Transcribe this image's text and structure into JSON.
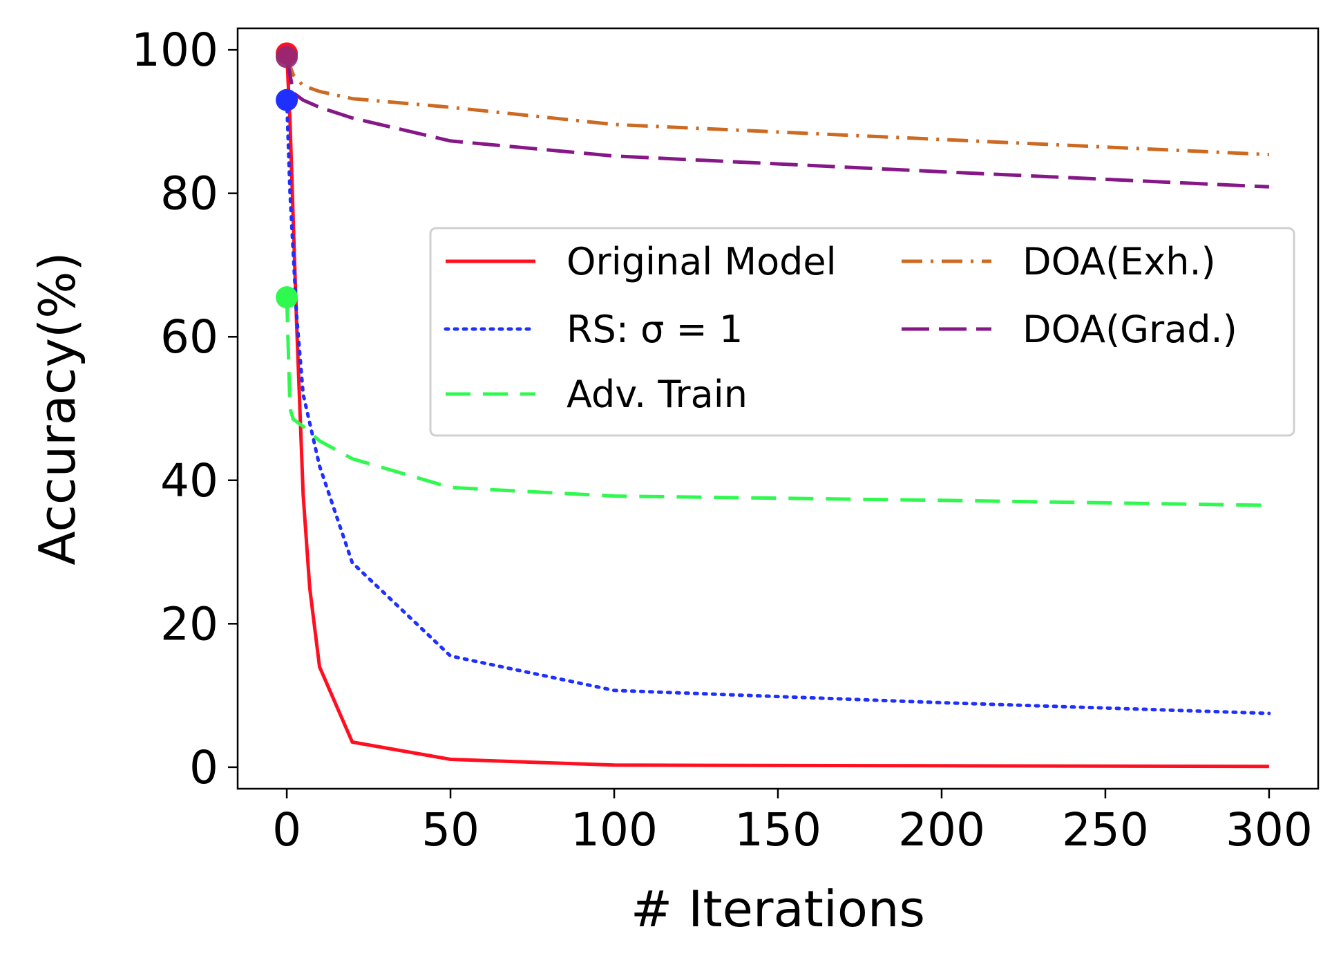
{
  "chart_data": {
    "type": "line",
    "title": "",
    "xlabel": "# Iterations",
    "ylabel": "Accuracy(%)",
    "xlim": [
      -15,
      315
    ],
    "ylim": [
      -3,
      103
    ],
    "xticks": [
      0,
      50,
      100,
      150,
      200,
      250,
      300
    ],
    "yticks": [
      0,
      20,
      40,
      60,
      80,
      100
    ],
    "grid": false,
    "legend_position": "center-right",
    "legend_columns": 2,
    "series": [
      {
        "name": "Original Model",
        "color": "#ff0f1f",
        "dash": "solid",
        "x": [
          0,
          1,
          3,
          5,
          7,
          10,
          20,
          50,
          100,
          200,
          300
        ],
        "y": [
          99.5,
          90,
          62,
          38,
          25,
          14,
          3.5,
          1.1,
          0.3,
          0.2,
          0.1
        ],
        "marker": {
          "x": 0,
          "y": 99.5
        }
      },
      {
        "name": "RS: σ = 1",
        "color": "#1f2fff",
        "dash": "dotted",
        "x": [
          0,
          1,
          3,
          5,
          10,
          20,
          50,
          100,
          200,
          300
        ],
        "y": [
          93,
          80,
          63,
          52,
          42,
          28.5,
          15.5,
          10.7,
          9.0,
          7.5
        ],
        "marker": {
          "x": 0,
          "y": 93
        }
      },
      {
        "name": "Adv. Train",
        "color": "#2ff94f",
        "dash": "dashed",
        "x": [
          0,
          1,
          2,
          5,
          10,
          20,
          50,
          100,
          200,
          300
        ],
        "y": [
          65.5,
          50,
          48.5,
          47.5,
          45.5,
          43,
          39,
          37.8,
          37.2,
          36.5
        ],
        "marker": {
          "x": 0,
          "y": 65.5
        }
      },
      {
        "name": "DOA(Exh.)",
        "color": "#cc6a22",
        "dash": "dashdot",
        "x": [
          0,
          2,
          5,
          10,
          20,
          50,
          100,
          200,
          300
        ],
        "y": [
          99,
          96.5,
          95,
          94.2,
          93.2,
          92.0,
          89.6,
          87.5,
          85.4
        ],
        "marker": {
          "x": 0,
          "y": 99
        }
      },
      {
        "name": "DOA(Grad.)",
        "color": "#861788",
        "dash": "longdash",
        "x": [
          0,
          2,
          5,
          10,
          20,
          50,
          100,
          200,
          300
        ],
        "y": [
          99,
          94,
          93,
          92,
          90.5,
          87.3,
          85.2,
          83.0,
          80.9
        ],
        "marker": {
          "x": 0,
          "y": 99
        }
      }
    ]
  }
}
